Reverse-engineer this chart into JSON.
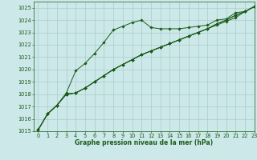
{
  "xlabel": "Graphe pression niveau de la mer (hPa)",
  "background_color": "#cce8e8",
  "grid_color": "#aacccc",
  "line_color": "#1a5c1a",
  "marker_color": "#1a5c1a",
  "ylim": [
    1015,
    1025.5
  ],
  "xlim": [
    -0.5,
    23
  ],
  "yticks": [
    1015,
    1016,
    1017,
    1018,
    1019,
    1020,
    1021,
    1022,
    1023,
    1024,
    1025
  ],
  "xticks": [
    0,
    1,
    2,
    3,
    4,
    5,
    6,
    7,
    8,
    9,
    10,
    11,
    12,
    13,
    14,
    15,
    16,
    17,
    18,
    19,
    20,
    21,
    22,
    23
  ],
  "series": [
    [
      1015.1,
      1016.4,
      1017.1,
      1018.1,
      1019.9,
      1020.5,
      1021.3,
      1022.2,
      1023.2,
      1023.5,
      1023.8,
      1024.0,
      1023.4,
      1023.3,
      1023.3,
      1023.3,
      1023.4,
      1023.5,
      1023.6,
      1024.0,
      1024.1,
      1024.6,
      1024.7,
      1025.1
    ],
    [
      1015.1,
      1016.4,
      1017.1,
      1018.0,
      1018.1,
      1018.5,
      1019.0,
      1019.5,
      1020.0,
      1020.4,
      1020.8,
      1021.2,
      1021.5,
      1021.8,
      1022.1,
      1022.4,
      1022.7,
      1023.0,
      1023.3,
      1023.6,
      1023.9,
      1024.2,
      1024.7,
      1025.1
    ],
    [
      1015.1,
      1016.4,
      1017.1,
      1018.0,
      1018.1,
      1018.5,
      1019.0,
      1019.5,
      1020.0,
      1020.4,
      1020.8,
      1021.2,
      1021.5,
      1021.8,
      1022.1,
      1022.4,
      1022.7,
      1023.0,
      1023.3,
      1023.7,
      1024.0,
      1024.4,
      1024.7,
      1025.1
    ],
    [
      1015.1,
      1016.4,
      1017.1,
      1018.0,
      1018.1,
      1018.5,
      1019.0,
      1019.5,
      1020.0,
      1020.4,
      1020.8,
      1021.2,
      1021.5,
      1021.8,
      1022.1,
      1022.4,
      1022.7,
      1023.0,
      1023.3,
      1023.7,
      1024.0,
      1024.4,
      1024.7,
      1025.1
    ]
  ],
  "xlabel_fontsize": 5.5,
  "tick_fontsize": 4.8,
  "marker_size": 1.8,
  "linewidth": 0.7
}
